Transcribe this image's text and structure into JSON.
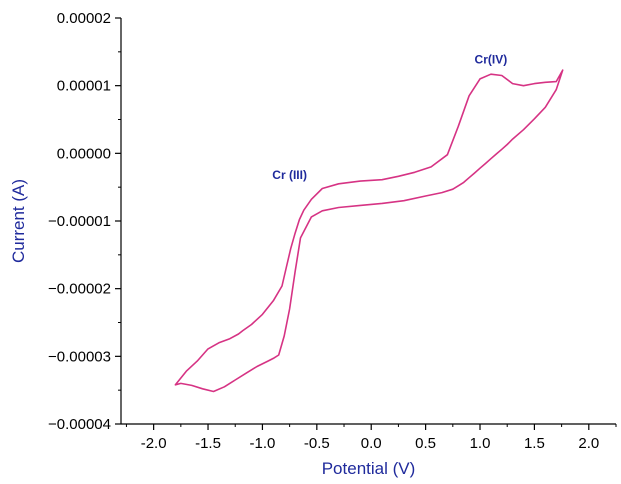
{
  "chart_data": {
    "type": "line",
    "xlabel": "Potential (V)",
    "ylabel": "Current (A)",
    "xlim": [
      -2.3,
      2.25
    ],
    "ylim": [
      -4e-05,
      2e-05
    ],
    "x_ticks": [
      -2.0,
      -1.5,
      -1.0,
      -0.5,
      0.0,
      0.5,
      1.0,
      1.5,
      2.0
    ],
    "x_tick_labels": [
      "-2.0",
      "-1.5",
      "-1.0",
      "-0.5",
      "0.0",
      "0.5",
      "1.0",
      "1.5",
      "2.0"
    ],
    "y_ticks": [
      -4e-05,
      -3e-05,
      -2e-05,
      -1e-05,
      0.0,
      1e-05,
      2e-05
    ],
    "y_tick_labels": [
      "−0.00004",
      "−0.00003",
      "−0.00002",
      "−0.00001",
      "0.00000",
      "0.00001",
      "0.00002"
    ],
    "grid": false,
    "series": [
      {
        "color": "#d63384",
        "x": [
          -1.8,
          -1.75,
          -1.65,
          -1.55,
          -1.45,
          -1.35,
          -1.25,
          -1.15,
          -1.05,
          -0.95,
          -0.9,
          -0.85,
          -0.8,
          -0.75,
          -0.7,
          -0.65,
          -0.55,
          -0.45,
          -0.3,
          -0.1,
          0.1,
          0.3,
          0.5,
          0.65,
          0.75,
          0.8,
          0.85,
          0.9,
          0.95,
          1.0,
          1.05,
          1.1,
          1.15,
          1.2,
          1.25,
          1.3,
          1.4,
          1.5,
          1.6,
          1.7,
          1.76,
          1.7,
          1.6,
          1.5,
          1.4,
          1.3,
          1.2,
          1.1,
          1.0,
          0.9,
          0.8,
          0.7,
          0.55,
          0.4,
          0.25,
          0.1,
          -0.1,
          -0.3,
          -0.45,
          -0.55,
          -0.62,
          -0.66,
          -0.7,
          -0.74,
          -0.78,
          -0.82,
          -0.9,
          -1.0,
          -1.1,
          -1.18,
          -1.22,
          -1.3,
          -1.4,
          -1.5,
          -1.6,
          -1.7,
          -1.8
        ],
        "y": [
          -3.42e-05,
          -3.4e-05,
          -3.43e-05,
          -3.48e-05,
          -3.52e-05,
          -3.45e-05,
          -3.35e-05,
          -3.25e-05,
          -3.15e-05,
          -3.07e-05,
          -3.03e-05,
          -2.98e-05,
          -2.7e-05,
          -2.3e-05,
          -1.75e-05,
          -1.25e-05,
          -9.4e-06,
          -8.5e-06,
          -8e-06,
          -7.7e-06,
          -7.4e-06,
          -7e-06,
          -6.3e-06,
          -5.8e-06,
          -5.3e-06,
          -4.8e-06,
          -4.3e-06,
          -3.6e-06,
          -2.9e-06,
          -2.2e-06,
          -1.5e-06,
          -8e-07,
          -1e-07,
          6e-07,
          1.3e-06,
          2.1e-06,
          3.5e-06,
          5.1e-06,
          6.8e-06,
          9.4e-06,
          1.23e-05,
          1.06e-05,
          1.05e-05,
          1.03e-05,
          1e-05,
          1.03e-05,
          1.15e-05,
          1.17e-05,
          1.1e-05,
          8.5e-06,
          4e-06,
          -2e-07,
          -2e-06,
          -2.8e-06,
          -3.4e-06,
          -3.9e-06,
          -4.1e-06,
          -4.5e-06,
          -5.2e-06,
          -6.8e-06,
          -8.4e-06,
          -9.8e-06,
          -1.18e-05,
          -1.41e-05,
          -1.68e-05,
          -1.96e-05,
          -2.18e-05,
          -2.38e-05,
          -2.53e-05,
          -2.62e-05,
          -2.67e-05,
          -2.74e-05,
          -2.8e-05,
          -2.89e-05,
          -3.07e-05,
          -3.22e-05,
          -3.42e-05
        ]
      }
    ],
    "annotations": [
      {
        "text": "Cr(IV)",
        "x": 1.1,
        "y": 1.33e-05
      },
      {
        "text": "Cr (III)",
        "x": -0.75,
        "y": -3.8e-06
      }
    ]
  },
  "colors": {
    "curve": "#d63384",
    "axis_title": "#1f2a9c",
    "annotation": "#1f2a9c",
    "axes": "#000000"
  }
}
